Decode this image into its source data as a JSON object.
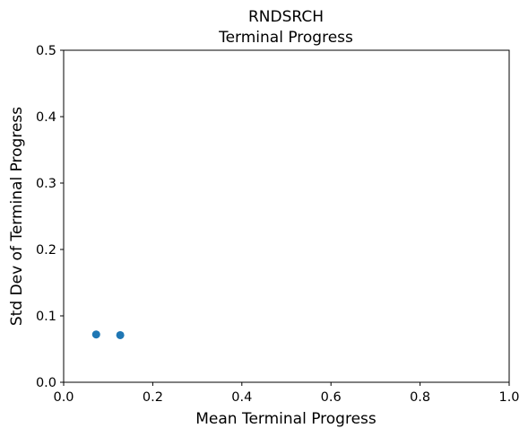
{
  "chart_data": {
    "type": "scatter",
    "title": "RNDSRCH",
    "subtitle": "Terminal Progress",
    "xlabel": "Mean Terminal Progress",
    "ylabel": "Std Dev of Terminal Progress",
    "xlim": [
      0,
      1
    ],
    "ylim": [
      0,
      0.5
    ],
    "x_ticks": [
      "0.0",
      "0.2",
      "0.4",
      "0.6",
      "0.8",
      "1.0"
    ],
    "y_ticks": [
      "0.0",
      "0.1",
      "0.2",
      "0.3",
      "0.4",
      "0.5"
    ],
    "grid": false,
    "marker_color": "#1f77b4",
    "series": [
      {
        "points": [
          {
            "x": 0.073,
            "y": 0.072
          },
          {
            "x": 0.127,
            "y": 0.071
          }
        ]
      }
    ]
  }
}
